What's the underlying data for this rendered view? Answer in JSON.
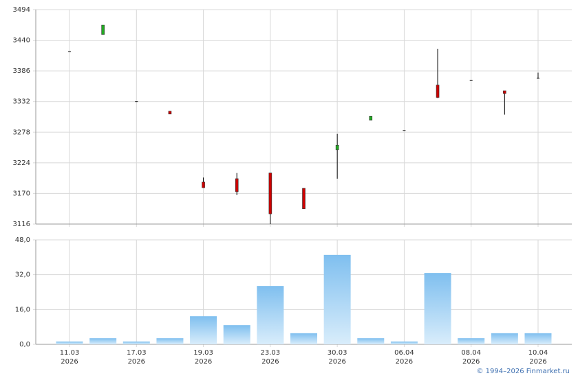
{
  "chart_data": [
    {
      "type": "candlestick",
      "open": [
        3420,
        3450,
        3332,
        3315,
        3190,
        3196,
        3206,
        3179,
        3247,
        3299,
        3281,
        3361,
        3369,
        3351,
        3373
      ],
      "high": [
        3420,
        3467,
        3332,
        3315,
        3198,
        3206,
        3206,
        3179,
        3275,
        3306,
        3281,
        3425,
        3369,
        3351,
        3383
      ],
      "low": [
        3420,
        3450,
        3332,
        3310,
        3180,
        3167,
        3116,
        3143,
        3196,
        3299,
        3281,
        3338,
        3369,
        3309,
        3373
      ],
      "close": [
        3420,
        3467,
        3332,
        3310,
        3180,
        3173,
        3134,
        3143,
        3255,
        3306,
        3281,
        3339,
        3369,
        3346,
        3373
      ],
      "up_color": "#22aa22",
      "down_color": "#cc0000",
      "ylim": [
        3116,
        3494
      ],
      "yticks": [
        3116,
        3170,
        3224,
        3278,
        3332,
        3386,
        3440,
        3494
      ],
      "grid": true
    },
    {
      "type": "bar",
      "categories": [
        "11.03\n2026",
        null,
        "17.03\n2026",
        null,
        "19.03\n2026",
        null,
        "23.03\n2026",
        null,
        "30.03\n2026",
        null,
        "06.04\n2026",
        null,
        "08.04\n2026",
        null,
        "10.04\n2026"
      ],
      "values": [
        1.3,
        2.8,
        1.3,
        2.8,
        12.9,
        8.8,
        26.8,
        5.1,
        41.1,
        2.8,
        1.3,
        32.8,
        2.8,
        5.1,
        5.1
      ],
      "color": "#7fbfef",
      "ylim": [
        0,
        48
      ],
      "yticks": [
        {
          "value": 0,
          "label": "0,0"
        },
        {
          "value": 16,
          "label": "16,0"
        },
        {
          "value": 32,
          "label": "32,0"
        },
        {
          "value": 48,
          "label": "48,0"
        }
      ],
      "grid": true
    }
  ],
  "footer": "© 1994–2026 Finmarket.ru"
}
